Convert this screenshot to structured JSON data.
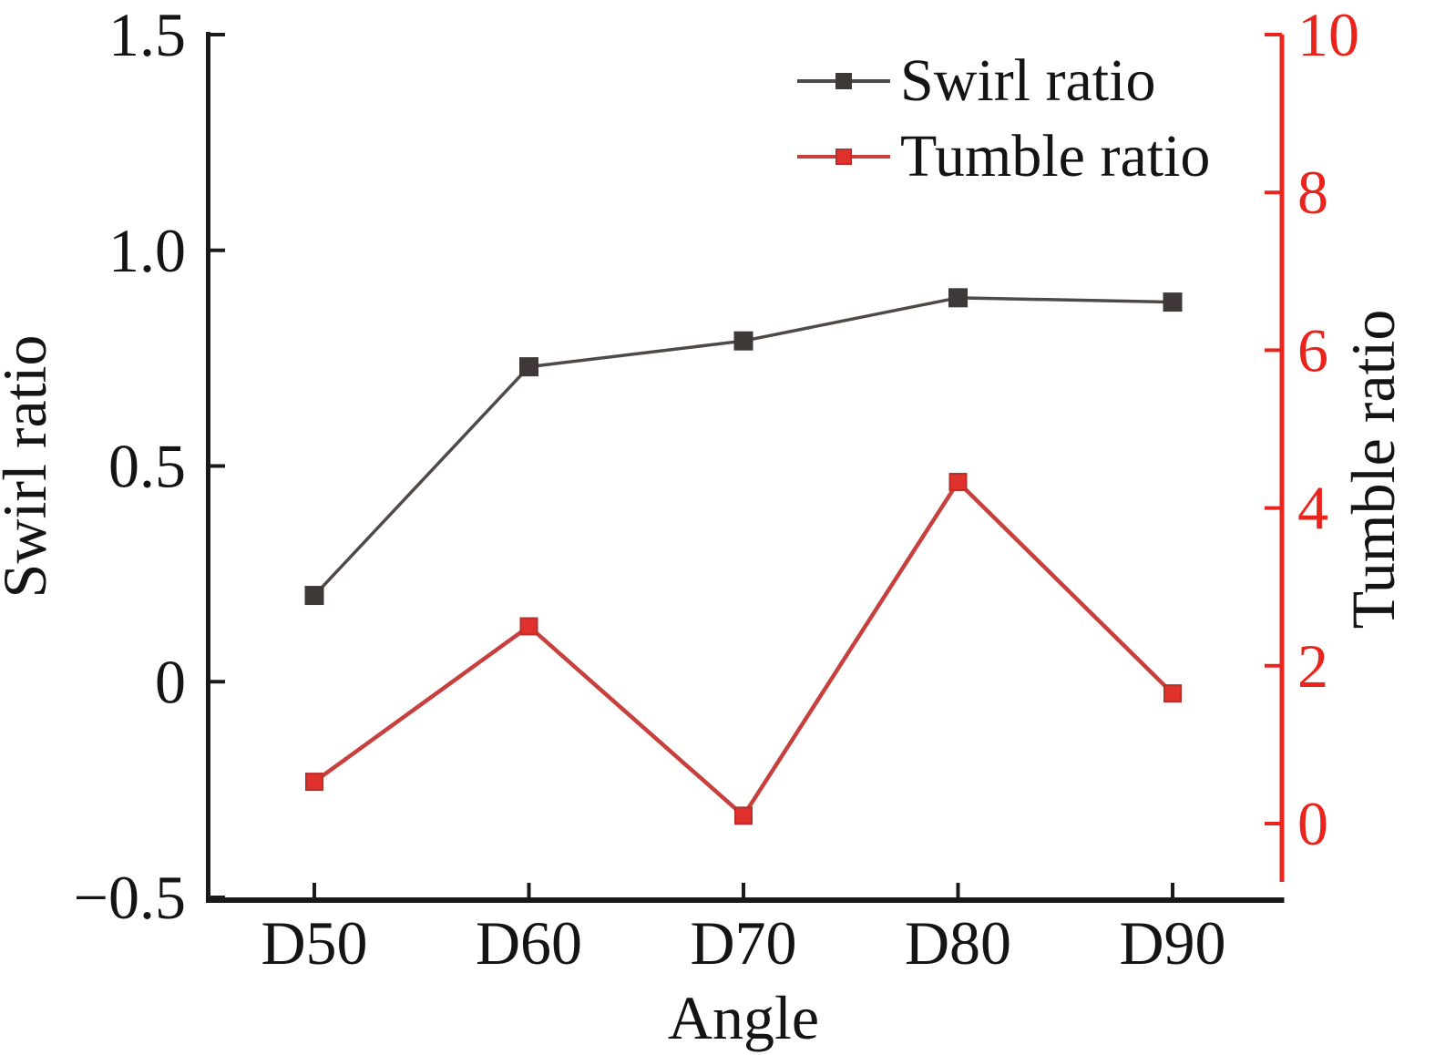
{
  "chart_data": {
    "type": "line",
    "title": "",
    "categories": [
      "D50",
      "D60",
      "D70",
      "D80",
      "D90"
    ],
    "xlabel": "Angle",
    "left_axis": {
      "label": "Swirl ratio",
      "range": [
        -0.5,
        1.5
      ],
      "color": "#1a1a1a",
      "ticks": [
        {
          "label": "1.5",
          "value": 1.5
        },
        {
          "label": "1.0",
          "value": 1.0
        },
        {
          "label": "0.5",
          "value": 0.5
        },
        {
          "label": "0",
          "value": 0
        },
        {
          "label": "−0.5",
          "value": -0.5
        }
      ]
    },
    "right_axis": {
      "label": "Tumble ratio",
      "range_shown": [
        0,
        10
      ],
      "color": "#e8241d",
      "ticks": [
        {
          "label": "10",
          "value": 10
        },
        {
          "label": "8",
          "value": 8
        },
        {
          "label": "6",
          "value": 6
        },
        {
          "label": "4",
          "value": 4
        },
        {
          "label": "2",
          "value": 2
        },
        {
          "label": "0",
          "value": 0
        }
      ]
    },
    "series": [
      {
        "name": "Swirl ratio",
        "axis": "left",
        "values": [
          0.2,
          0.73,
          0.79,
          0.89,
          0.88
        ],
        "line_color": "#4f4947",
        "marker_color": "#3e3937",
        "marker_stroke": "#3e3937"
      },
      {
        "name": "Tumble ratio",
        "axis": "right",
        "values": [
          0.53,
          2.5,
          0.1,
          4.33,
          1.65
        ],
        "line_color": "#c7403d",
        "marker_color": "#e1312d",
        "marker_stroke": "#b8302c"
      }
    ],
    "legend": {
      "position": "top-right",
      "grid": "off"
    }
  }
}
